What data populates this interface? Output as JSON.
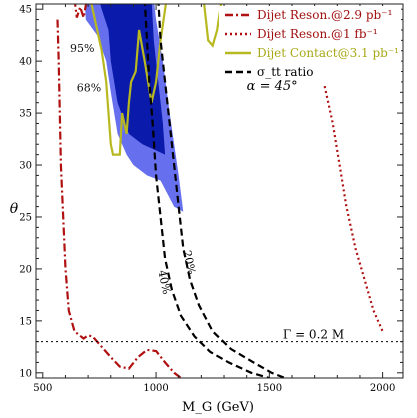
{
  "chart_data": {
    "type": "line",
    "xlabel": "M_G (GeV)",
    "ylabel": "θ",
    "xlim": [
      470,
      2090
    ],
    "ylim": [
      9.5,
      45.5
    ],
    "xticks": [
      "500",
      "1000",
      "1500",
      "2000"
    ],
    "xtick_values": [
      500,
      1000,
      1500,
      2000
    ],
    "yticks": [
      "10",
      "15",
      "20",
      "25",
      "30",
      "35",
      "40",
      "45"
    ],
    "ytick_values": [
      10,
      15,
      20,
      25,
      30,
      35,
      40,
      45
    ],
    "legend_position": "top-right",
    "legend": [
      {
        "label": "Dijet Reson.@2.9 pb⁻¹",
        "color": "#b01010",
        "style": "dashdot"
      },
      {
        "label": "Dijet Reson.@1 fb⁻¹",
        "color": "#b01010",
        "style": "dotted"
      },
      {
        "label": "Dijet Contact@3.1 pb⁻¹",
        "color": "#b8b820",
        "style": "solid"
      },
      {
        "label": "σ_tt ratio",
        "color": "#000000",
        "style": "dashed"
      }
    ],
    "annotations": {
      "alpha": "α = 45°",
      "gamma": "Γ = 0.2 M",
      "region_95": "95%",
      "region_68": "68%",
      "ratio_40": "40%",
      "ratio_20": "20%"
    },
    "regions": [
      {
        "name": "95% CL",
        "color": "#6670ee",
        "points": [
          [
            680,
            48
          ],
          [
            690,
            44
          ],
          [
            740,
            42.5
          ],
          [
            780,
            40
          ],
          [
            800,
            37
          ],
          [
            830,
            33
          ],
          [
            870,
            31
          ],
          [
            900,
            30
          ],
          [
            960,
            29
          ],
          [
            1020,
            28.5
          ],
          [
            1080,
            26
          ],
          [
            1120,
            25.5
          ],
          [
            1100,
            29
          ],
          [
            1060,
            35
          ],
          [
            1030,
            40
          ],
          [
            1000,
            44
          ],
          [
            980,
            48
          ]
        ]
      },
      {
        "name": "68% CL",
        "color": "#0a1aaa",
        "points": [
          [
            720,
            48
          ],
          [
            760,
            45
          ],
          [
            790,
            43
          ],
          [
            800,
            40
          ],
          [
            830,
            36
          ],
          [
            880,
            33
          ],
          [
            940,
            32
          ],
          [
            990,
            31.5
          ],
          [
            1040,
            31
          ],
          [
            1030,
            34
          ],
          [
            1010,
            38
          ],
          [
            990,
            42
          ],
          [
            975,
            48
          ]
        ]
      }
    ],
    "series": [
      {
        "name": "Dijet Reson.@2.9 pb⁻¹",
        "style": "dashdot",
        "color": "#b01010",
        "points": [
          [
            565,
            44
          ],
          [
            570,
            40
          ],
          [
            575,
            35
          ],
          [
            580,
            30
          ],
          [
            590,
            25
          ],
          [
            600,
            20
          ],
          [
            615,
            16
          ],
          [
            640,
            14
          ],
          [
            680,
            13.3
          ],
          [
            700,
            13.6
          ],
          [
            720,
            13.5
          ],
          [
            760,
            12.5
          ],
          [
            800,
            11.5
          ],
          [
            840,
            10.6
          ],
          [
            880,
            10.4
          ],
          [
            920,
            11.5
          ],
          [
            960,
            12.2
          ],
          [
            1000,
            12.1
          ],
          [
            1040,
            11
          ],
          [
            1080,
            10
          ],
          [
            1110,
            9.5
          ]
        ]
      },
      {
        "name": "Dijet Reson.@2.9 pb⁻¹ (top)",
        "style": "dashdot",
        "color": "#b01010",
        "points": [
          [
            640,
            46
          ],
          [
            650,
            44.2
          ],
          [
            665,
            45.2
          ],
          [
            680,
            44.2
          ],
          [
            695,
            46
          ]
        ]
      },
      {
        "name": "Dijet Reson.@1 fb⁻¹",
        "style": "dotted",
        "color": "#b01010",
        "points": [
          [
            1730,
            39
          ],
          [
            1750,
            37
          ],
          [
            1780,
            34
          ],
          [
            1810,
            30
          ],
          [
            1840,
            26
          ],
          [
            1880,
            22
          ],
          [
            1920,
            19
          ],
          [
            1960,
            16
          ],
          [
            2000,
            14
          ]
        ]
      },
      {
        "name": "Dijet Contact@3.1 pb⁻¹",
        "style": "solid",
        "color": "#b8b820",
        "points": [
          [
            700,
            49
          ],
          [
            710,
            46
          ],
          [
            730,
            44
          ],
          [
            760,
            41
          ],
          [
            780,
            38
          ],
          [
            800,
            32
          ],
          [
            810,
            31
          ],
          [
            820,
            31
          ],
          [
            840,
            31
          ],
          [
            850,
            35
          ],
          [
            870,
            33
          ],
          [
            880,
            36
          ],
          [
            890,
            38
          ],
          [
            910,
            39
          ],
          [
            925,
            43
          ],
          [
            950,
            40
          ],
          [
            980,
            36
          ],
          [
            1000,
            38
          ],
          [
            1020,
            42
          ],
          [
            1040,
            45
          ],
          [
            1060,
            48
          ]
        ]
      },
      {
        "name": "Dijet Contact@3.1 pb⁻¹ (right)",
        "style": "solid",
        "color": "#b8b820",
        "points": [
          [
            1200,
            49
          ],
          [
            1210,
            46
          ],
          [
            1230,
            42
          ],
          [
            1250,
            41.5
          ],
          [
            1270,
            43
          ],
          [
            1290,
            46
          ],
          [
            1300,
            49
          ]
        ]
      },
      {
        "name": "σ_tt ratio 40%",
        "style": "dashed",
        "color": "#000000",
        "points": [
          [
            950,
            46
          ],
          [
            960,
            42
          ],
          [
            970,
            38
          ],
          [
            985,
            34
          ],
          [
            1000,
            29
          ],
          [
            1020,
            25
          ],
          [
            1040,
            21
          ],
          [
            1070,
            18
          ],
          [
            1110,
            15.5
          ],
          [
            1170,
            13.5
          ],
          [
            1240,
            12
          ],
          [
            1320,
            11
          ],
          [
            1420,
            10
          ],
          [
            1500,
            9.5
          ]
        ]
      },
      {
        "name": "σ_tt ratio 20%",
        "style": "dashed",
        "color": "#000000",
        "points": [
          [
            1010,
            46
          ],
          [
            1020,
            42
          ],
          [
            1040,
            38
          ],
          [
            1060,
            34
          ],
          [
            1080,
            30
          ],
          [
            1100,
            26
          ],
          [
            1120,
            22
          ],
          [
            1150,
            19
          ],
          [
            1190,
            16.5
          ],
          [
            1250,
            14
          ],
          [
            1330,
            12.3
          ],
          [
            1430,
            11
          ],
          [
            1510,
            10
          ],
          [
            1570,
            9.5
          ]
        ]
      },
      {
        "name": "Γ = 0.2 M",
        "style": "dotted",
        "color": "#000000",
        "points": [
          [
            470,
            13
          ],
          [
            2090,
            13
          ]
        ]
      }
    ]
  }
}
